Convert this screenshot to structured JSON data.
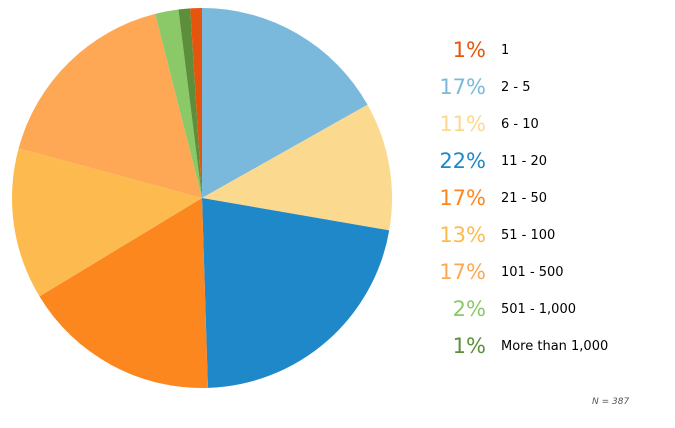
{
  "chart_data": {
    "type": "pie",
    "categories": [
      "1",
      "2 - 5",
      "6 - 10",
      "11 - 20",
      "21 - 50",
      "51 - 100",
      "101 - 500",
      "501 - 1,000",
      "More than 1,000"
    ],
    "percent_labels": [
      "1%",
      "17%",
      "11%",
      "22%",
      "17%",
      "13%",
      "17%",
      "2%",
      "1%"
    ],
    "colors": [
      "#e6550d",
      "#7ab9dc",
      "#fbd98f",
      "#1f88c8",
      "#fd871f",
      "#fdbb4f",
      "#fea855",
      "#8ac868",
      "#5d8f3a"
    ],
    "legend_position": "right"
  },
  "note": "N = 387"
}
